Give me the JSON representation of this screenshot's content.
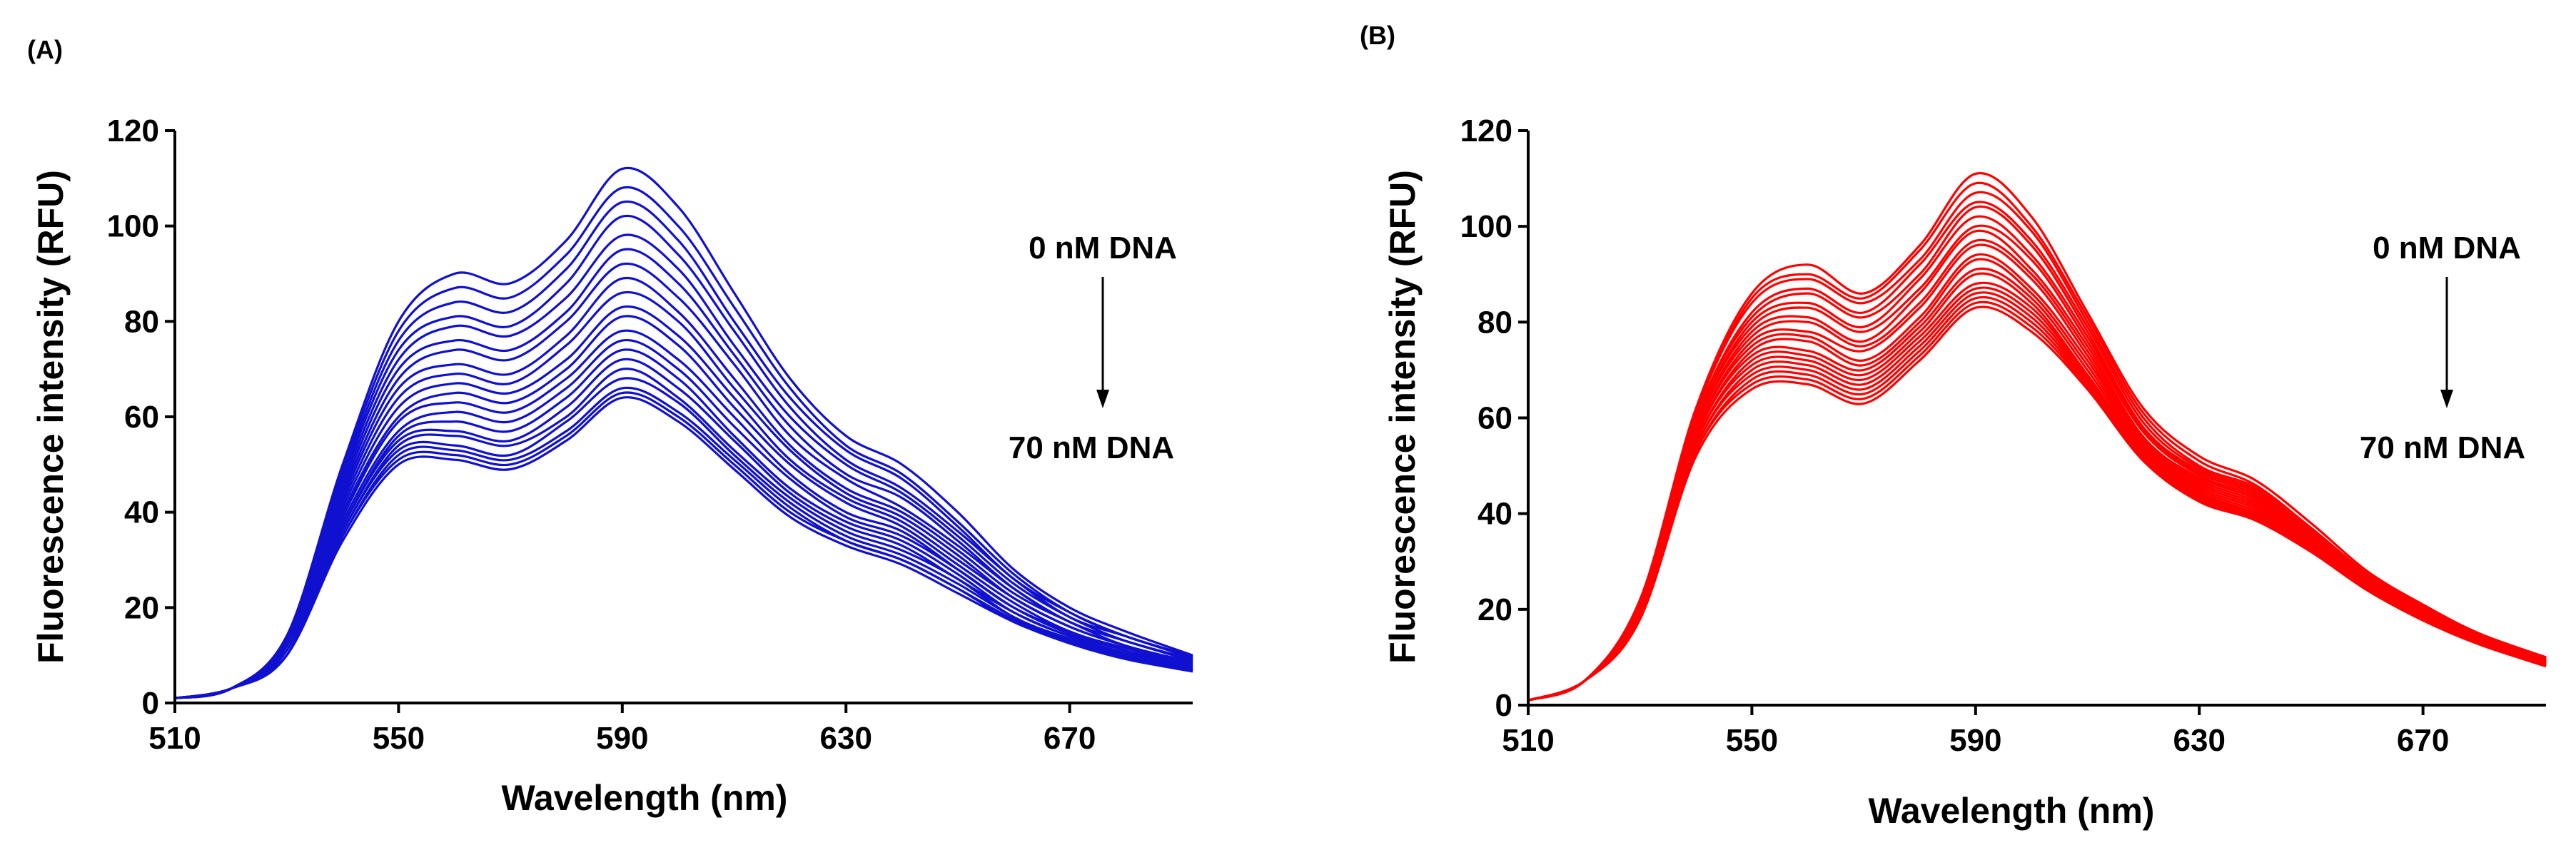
{
  "chart_data": [
    {
      "type": "line",
      "panel_label": "(A)",
      "xlabel": "Wavelength (nm)",
      "ylabel": "Fluorescence intensity (RFU)",
      "xlim": [
        510,
        692
      ],
      "ylim": [
        0,
        120
      ],
      "xticks": [
        510,
        550,
        590,
        630,
        670
      ],
      "yticks": [
        0,
        20,
        40,
        60,
        80,
        100,
        120
      ],
      "grid": false,
      "line_color": "#1010d0",
      "annotation_top": "0 nM DNA",
      "annotation_bottom": "70 nM DNA",
      "series_count": 20,
      "x": [
        510,
        520,
        530,
        540,
        550,
        560,
        570,
        580,
        590,
        600,
        610,
        620,
        630,
        640,
        650,
        660,
        670,
        680,
        692
      ],
      "series": [
        {
          "values": [
            1,
            3,
            14,
            50,
            80,
            90,
            88,
            97,
            112,
            104,
            86,
            68,
            56,
            50,
            40,
            28,
            20,
            15,
            10
          ]
        },
        {
          "values": [
            1,
            3,
            14,
            49,
            78,
            87,
            85,
            94,
            108,
            100,
            83,
            66,
            54,
            48,
            38,
            27,
            19,
            14,
            9.8
          ]
        },
        {
          "values": [
            1,
            3,
            14,
            48,
            76,
            84,
            82,
            91,
            105,
            97,
            80,
            64,
            53,
            47,
            37,
            26,
            19,
            14,
            9.6
          ]
        },
        {
          "values": [
            1,
            3,
            13,
            47,
            74,
            81,
            79,
            88,
            102,
            94,
            78,
            62,
            51,
            45,
            36,
            26,
            18,
            14,
            9.4
          ]
        },
        {
          "values": [
            1,
            3,
            13,
            46,
            72,
            79,
            77,
            85,
            98,
            91,
            75,
            60,
            50,
            44,
            35,
            25,
            18,
            13,
            9.2
          ]
        },
        {
          "values": [
            1,
            3,
            13,
            45,
            70,
            76,
            74,
            82,
            95,
            88,
            73,
            58,
            48,
            43,
            34,
            24,
            17,
            13,
            9
          ]
        },
        {
          "values": [
            1,
            3,
            13,
            44,
            68,
            74,
            72,
            80,
            92,
            85,
            71,
            56,
            47,
            41,
            33,
            24,
            17,
            13,
            8.8
          ]
        },
        {
          "values": [
            1,
            3,
            12,
            43,
            66,
            71,
            69,
            77,
            89,
            82,
            68,
            54,
            45,
            40,
            32,
            23,
            17,
            12,
            8.6
          ]
        },
        {
          "values": [
            1,
            3,
            12,
            42,
            64,
            69,
            67,
            75,
            86,
            80,
            66,
            53,
            44,
            39,
            31,
            22,
            16,
            12,
            8.4
          ]
        },
        {
          "values": [
            1,
            3,
            12,
            41,
            62,
            67,
            65,
            72,
            83,
            77,
            64,
            51,
            43,
            38,
            30,
            22,
            16,
            12,
            8.2
          ]
        },
        {
          "values": [
            1,
            3,
            12,
            40,
            60,
            65,
            63,
            70,
            81,
            75,
            62,
            50,
            42,
            37,
            29,
            21,
            15,
            11.5,
            8
          ]
        },
        {
          "values": [
            1,
            3,
            11,
            39,
            59,
            63,
            61,
            68,
            78,
            72,
            60,
            48,
            40,
            36,
            28,
            20,
            15,
            11,
            7.8
          ]
        },
        {
          "values": [
            1,
            3,
            11,
            38,
            57,
            61,
            59,
            66,
            76,
            70,
            58,
            47,
            39,
            35,
            28,
            20,
            14.5,
            11,
            7.6
          ]
        },
        {
          "values": [
            1,
            3,
            11,
            37,
            56,
            59,
            57,
            64,
            74,
            68,
            56,
            45,
            38,
            34,
            27,
            19,
            14,
            10.5,
            7.4
          ]
        },
        {
          "values": [
            1,
            3,
            11,
            37,
            55,
            57,
            55,
            62,
            72,
            66,
            55,
            44,
            37,
            33,
            26,
            19,
            14,
            10.3,
            7.2
          ]
        },
        {
          "values": [
            1,
            3,
            11,
            36,
            54,
            56,
            54,
            60,
            70,
            64,
            53,
            43,
            36,
            32,
            26,
            18,
            13.5,
            10,
            7
          ]
        },
        {
          "values": [
            1,
            3,
            10,
            36,
            53,
            54,
            52,
            59,
            68,
            63,
            52,
            42,
            35,
            31,
            25,
            18,
            13,
            9.8,
            6.9
          ]
        },
        {
          "values": [
            1,
            3,
            10,
            35,
            52,
            53,
            51,
            57,
            66,
            61,
            51,
            41,
            34,
            30,
            24,
            17.5,
            13,
            9.6,
            6.8
          ]
        },
        {
          "values": [
            1,
            3,
            10,
            35,
            51,
            52,
            50,
            56,
            65,
            60,
            50,
            40,
            34,
            30,
            24,
            17,
            12.8,
            9.4,
            6.7
          ]
        },
        {
          "values": [
            1,
            3,
            10,
            34,
            50,
            51,
            49,
            55,
            64,
            59,
            49,
            39,
            33,
            29,
            23,
            17,
            12.5,
            9.2,
            6.6
          ]
        }
      ]
    },
    {
      "type": "line",
      "panel_label": "(B)",
      "xlabel": "Wavelength (nm)",
      "ylabel": "Fluorescence intensity (RFU)",
      "xlim": [
        510,
        692
      ],
      "ylim": [
        0,
        120
      ],
      "xticks": [
        510,
        550,
        590,
        630,
        670
      ],
      "yticks": [
        0,
        20,
        40,
        60,
        80,
        100,
        120
      ],
      "grid": false,
      "line_color": "#ff0000",
      "annotation_top": "0 nM DNA",
      "annotation_bottom": "70 nM DNA",
      "series_count": 20,
      "x": [
        510,
        520,
        530,
        540,
        550,
        560,
        570,
        580,
        590,
        600,
        610,
        620,
        630,
        640,
        650,
        660,
        670,
        680,
        692
      ],
      "series": [
        {
          "values": [
            1,
            5,
            22,
            62,
            86,
            92,
            86,
            96,
            111,
            102,
            82,
            62,
            52,
            47,
            38,
            28,
            21,
            15,
            10
          ]
        },
        {
          "values": [
            1,
            5,
            22,
            61,
            85,
            90,
            85,
            95,
            109,
            100,
            81,
            61,
            51,
            46,
            37,
            27.5,
            20.5,
            14.8,
            9.9
          ]
        },
        {
          "values": [
            1,
            5,
            21,
            61,
            84,
            89,
            84,
            93,
            107,
            99,
            80,
            60,
            50,
            45.5,
            37,
            27,
            20.3,
            14.6,
            9.8
          ]
        },
        {
          "values": [
            1,
            5,
            21,
            60,
            82,
            87,
            82,
            92,
            105,
            97,
            79,
            59,
            49.5,
            45,
            36.5,
            27,
            20,
            14.5,
            9.7
          ]
        },
        {
          "values": [
            1,
            5,
            21,
            60,
            81,
            86,
            81,
            90,
            104,
            96,
            78,
            58,
            49,
            44.5,
            36,
            26.5,
            19.8,
            14.3,
            9.6
          ]
        },
        {
          "values": [
            1,
            5,
            21,
            59,
            80,
            84,
            79,
            89,
            102,
            94,
            77,
            57.5,
            48.5,
            44,
            35.5,
            26.3,
            19.6,
            14.2,
            9.5
          ]
        },
        {
          "values": [
            1,
            5,
            20,
            59,
            79,
            83,
            78,
            87,
            100,
            93,
            76,
            57,
            48,
            43.5,
            35,
            26,
            19.4,
            14,
            9.4
          ]
        },
        {
          "values": [
            1,
            5,
            20,
            58,
            78,
            81,
            76,
            86,
            99,
            91,
            75,
            56,
            47.5,
            43,
            34.8,
            25.8,
            19.2,
            13.9,
            9.3
          ]
        },
        {
          "values": [
            1,
            5,
            20,
            58,
            77,
            80,
            75,
            84,
            97,
            90,
            74,
            55.5,
            47,
            42.5,
            34.5,
            25.6,
            19,
            13.8,
            9.2
          ]
        },
        {
          "values": [
            1,
            5,
            20,
            57,
            76,
            78,
            74,
            83,
            96,
            89,
            73,
            55,
            46.5,
            42,
            34.2,
            25.4,
            18.8,
            13.7,
            9.1
          ]
        },
        {
          "values": [
            1,
            5,
            20,
            57,
            75,
            77,
            72,
            81,
            94,
            87,
            72,
            54.5,
            46,
            41.5,
            34,
            25.2,
            18.6,
            13.6,
            9
          ]
        },
        {
          "values": [
            1,
            5,
            19,
            56,
            74,
            76,
            71,
            80,
            93,
            86,
            71,
            54,
            45.5,
            41,
            33.7,
            25,
            18.5,
            13.5,
            8.9
          ]
        },
        {
          "values": [
            1,
            5,
            19,
            56,
            73,
            74,
            70,
            79,
            91,
            85,
            70,
            53.5,
            45,
            40.5,
            33.5,
            24.8,
            18.4,
            13.4,
            8.8
          ]
        },
        {
          "values": [
            1,
            5,
            19,
            55,
            72,
            73,
            69,
            78,
            90,
            84,
            69,
            53,
            44.5,
            40,
            33.2,
            24.6,
            18.3,
            13.3,
            8.7
          ]
        },
        {
          "values": [
            1,
            5,
            19,
            55,
            71,
            72,
            68,
            77,
            88,
            83,
            68.5,
            52.5,
            44,
            39.7,
            33,
            24.5,
            18.2,
            13.2,
            8.6
          ]
        },
        {
          "values": [
            1,
            5,
            19,
            54,
            70,
            71,
            67,
            76,
            87,
            82,
            68,
            52,
            43.7,
            39.4,
            32.8,
            24.4,
            18.1,
            13.1,
            8.5
          ]
        },
        {
          "values": [
            1,
            5,
            18,
            54,
            69,
            70,
            66,
            75,
            86,
            81,
            67.5,
            51.7,
            43.4,
            39.2,
            32.6,
            24.3,
            18,
            13,
            8.4
          ]
        },
        {
          "values": [
            1,
            5,
            18,
            53,
            68,
            69,
            65,
            74,
            85,
            80,
            67,
            51.4,
            43.1,
            39,
            32.4,
            24.2,
            17.9,
            12.9,
            8.3
          ]
        },
        {
          "values": [
            1,
            5,
            18,
            53,
            67,
            68,
            64,
            73,
            84,
            79,
            66.5,
            51.2,
            42.8,
            38.8,
            32.2,
            24.1,
            17.8,
            12.8,
            8.2
          ]
        },
        {
          "values": [
            1,
            5,
            18,
            52,
            66,
            67,
            63,
            72,
            83,
            78,
            66,
            51,
            42.5,
            38.6,
            32,
            24,
            17.7,
            12.7,
            8.1
          ]
        }
      ]
    }
  ]
}
